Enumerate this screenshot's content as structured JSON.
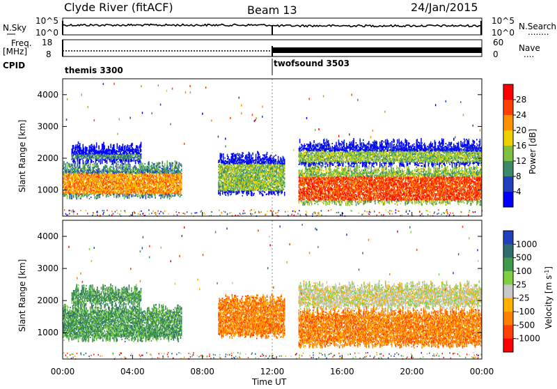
{
  "header": {
    "title": "Clyde River (fitACF)",
    "beam": "Beam 13",
    "date": "24/Jan/2015"
  },
  "top_panel": {
    "left_label": "N.Sky",
    "left_ticks": [
      "10^5",
      "10^0"
    ],
    "right_ticks": [
      "10^5",
      "10^0"
    ],
    "right_label": "N.Search",
    "right_label_decoration": "........"
  },
  "freq_panel": {
    "left_label_line1": "Freq.",
    "left_label_line2": "[MHz]",
    "left_ticks": [
      "18",
      "8"
    ],
    "right_ticks": [
      "60",
      "0"
    ],
    "right_label": "Nave",
    "right_label_decoration": "....",
    "cpid_label": "CPID"
  },
  "cpid_segments": [
    {
      "label": "themis 3300",
      "start_hour": 0
    },
    {
      "label": "twofsound 3503",
      "start_hour": 12.0
    }
  ],
  "power_panel": {
    "ylabel": "Slant Range [km]",
    "yticks": [
      "1000",
      "2000",
      "3000",
      "4000"
    ],
    "colorbar_label": "Power [dB]",
    "colorbar_ticks": [
      "4",
      "8",
      "12",
      "16",
      "20",
      "24",
      "28"
    ]
  },
  "velocity_panel": {
    "ylabel": "Slant Range [km]",
    "yticks": [
      "1000",
      "2000",
      "3000",
      "4000"
    ],
    "colorbar_label": "Velocity [m s",
    "colorbar_label_sup": "-1",
    "colorbar_label_end": "]",
    "colorbar_ticks": [
      "1000",
      "500",
      "100",
      "25",
      "-25",
      "-100",
      "-500",
      "-1000"
    ]
  },
  "xaxis": {
    "label": "Time UT",
    "ticks": [
      "00:00",
      "04:00",
      "08:00",
      "12:00",
      "16:00",
      "20:00",
      "00:00"
    ]
  },
  "chart_data": {
    "type": "heatmap",
    "title": "Clyde River (fitACF)",
    "xlabel": "Time UT",
    "ylabel": "Slant Range [km]",
    "x_range_hours": [
      0,
      24
    ],
    "y_range_km": [
      180,
      4500
    ],
    "power_colorbar_range_db": [
      0,
      32
    ],
    "velocity_colorbar_range": [
      -1200,
      1200
    ],
    "power_colors": [
      "#0000ff",
      "#2040c0",
      "#3a8a6a",
      "#80c040",
      "#f0d000",
      "#ff9000",
      "#ff4000",
      "#ff0000"
    ],
    "velocity_colors": [
      "#2040c0",
      "#2f6e6e",
      "#3f9a4a",
      "#7fd040",
      "#c8c8c8",
      "#ffb000",
      "#ff8000",
      "#ff4000",
      "#ff0000"
    ],
    "scatter_regions": [
      {
        "start_h": 0.0,
        "end_h": 6.8,
        "min_km": 700,
        "max_km": 1900,
        "power_db": 24,
        "velocity": 100
      },
      {
        "start_h": 0.5,
        "end_h": 4.5,
        "min_km": 1800,
        "max_km": 2500,
        "power_db": 10,
        "velocity": 150
      },
      {
        "start_h": 8.9,
        "end_h": 12.7,
        "min_km": 800,
        "max_km": 2200,
        "power_db": 12,
        "velocity": -150
      },
      {
        "start_h": 13.5,
        "end_h": 24.0,
        "min_km": 500,
        "max_km": 1800,
        "power_db": 26,
        "velocity": -200
      },
      {
        "start_h": 13.5,
        "end_h": 24.0,
        "min_km": 1700,
        "max_km": 2600,
        "power_db": 12,
        "velocity": 30
      }
    ]
  }
}
